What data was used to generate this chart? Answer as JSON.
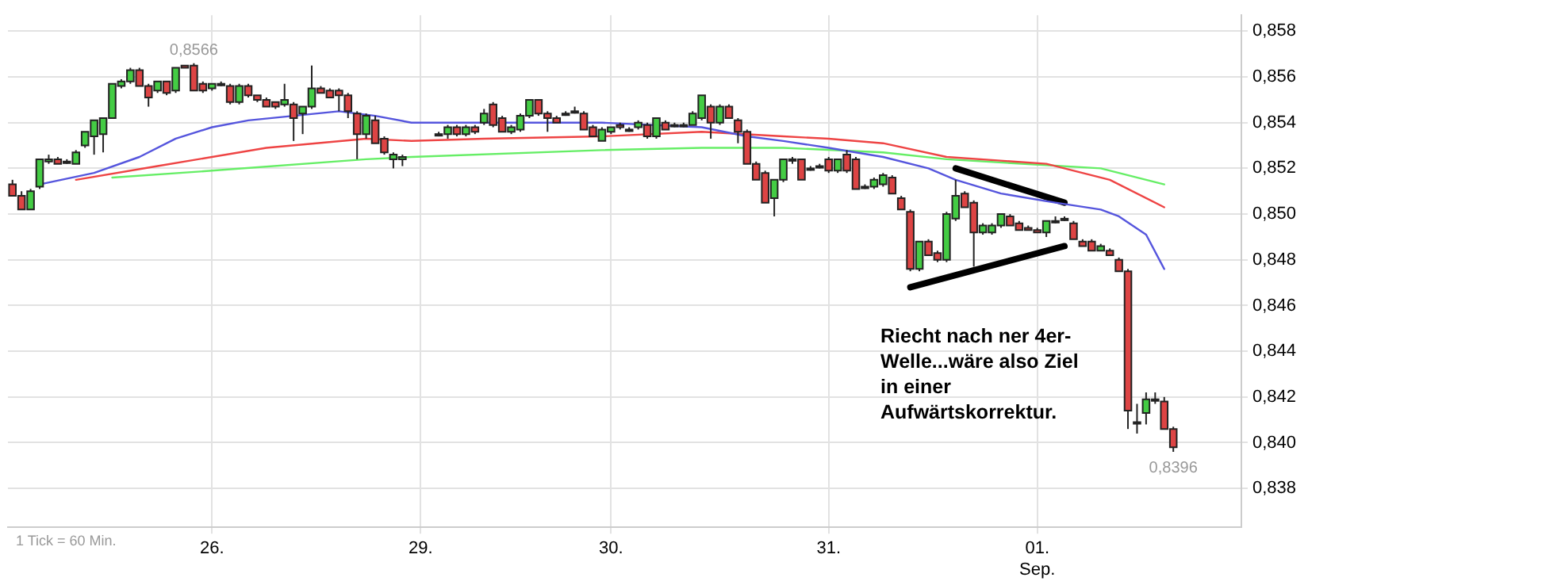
{
  "chart_data": {
    "type": "candlestick",
    "categories": [
      null,
      null,
      null,
      null,
      null,
      null,
      null,
      null,
      null,
      null,
      null,
      null,
      null,
      null,
      null,
      null,
      null,
      null,
      null,
      null,
      null,
      null,
      "26.",
      null,
      null,
      null,
      null,
      null,
      null,
      null,
      null,
      null,
      null,
      null,
      null,
      null,
      null,
      null,
      null,
      null,
      null,
      null,
      null,
      null,
      null,
      "29.",
      null,
      null,
      null,
      null,
      null,
      null,
      null,
      null,
      null,
      null,
      null,
      null,
      null,
      null,
      null,
      null,
      null,
      null,
      null,
      null,
      "30.",
      null,
      null,
      null,
      null,
      null,
      null,
      null,
      null,
      null,
      null,
      null,
      null,
      null,
      null,
      null,
      null,
      null,
      null,
      null,
      null,
      null,
      null,
      null,
      "31.",
      null,
      null,
      null,
      null,
      null,
      null,
      null,
      null,
      null,
      null,
      null,
      null,
      null,
      null,
      null,
      null,
      null,
      null,
      null,
      null,
      null,
      null,
      "01. Sep.",
      null,
      null,
      null,
      null,
      null,
      null,
      null,
      null,
      null,
      null,
      null,
      null,
      null,
      null,
      null,
      null,
      null,
      null,
      null,
      null,
      null,
      null
    ],
    "ylim": [
      0.8363,
      0.8587
    ],
    "yticks": [
      {
        "value": 0.838,
        "label": "0,838"
      },
      {
        "value": 0.84,
        "label": "0,840"
      },
      {
        "value": 0.842,
        "label": "0,842"
      },
      {
        "value": 0.844,
        "label": "0,844"
      },
      {
        "value": 0.846,
        "label": "0,846"
      },
      {
        "value": 0.848,
        "label": "0,848"
      },
      {
        "value": 0.85,
        "label": "0,850"
      },
      {
        "value": 0.852,
        "label": "0,852"
      },
      {
        "value": 0.854,
        "label": "0,854"
      },
      {
        "value": 0.856,
        "label": "0,856"
      },
      {
        "value": 0.858,
        "label": "0,858"
      }
    ],
    "grid": true,
    "annotations": [
      "Riecht nach ner 4er-Welle...wäre also Ziel in einer Aufwärtskorrektur.",
      "1 Tick = 60 Min.",
      {
        "text": "0,8566",
        "y": 0.8566
      },
      {
        "text": "0,8396",
        "y": 0.8396
      }
    ],
    "series": [
      {
        "ohlc": [
          [
            0.8513,
            0.8515,
            0.8508,
            0.8508
          ],
          [
            0.8508,
            0.851,
            0.8502,
            0.8502
          ],
          [
            0.8502,
            0.8511,
            0.8502,
            0.851
          ],
          [
            0.8512,
            0.8524,
            0.8511,
            0.8524
          ],
          [
            0.8523,
            0.8526,
            0.8522,
            0.8524
          ],
          [
            0.8524,
            0.8525,
            0.8522,
            0.8522
          ],
          [
            0.8523,
            0.8524,
            0.8522,
            0.8523
          ],
          [
            0.8522,
            0.8528,
            0.8522,
            0.8527
          ],
          [
            0.853,
            0.8536,
            0.8529,
            0.8536
          ],
          [
            0.8534,
            0.8541,
            0.8526,
            0.8541
          ],
          [
            0.8535,
            0.8542,
            0.8527,
            0.8542
          ],
          [
            0.8542,
            0.8557,
            0.8542,
            0.8557
          ],
          [
            0.8556,
            0.8559,
            0.8555,
            0.8558
          ],
          [
            0.8558,
            0.8564,
            0.8557,
            0.8563
          ],
          [
            0.8563,
            0.8564,
            0.8556,
            0.8556
          ],
          [
            0.8556,
            0.8557,
            0.8547,
            0.8551
          ],
          [
            0.8554,
            0.8558,
            0.8553,
            0.8558
          ],
          [
            0.8558,
            0.8558,
            0.8552,
            0.8553
          ],
          [
            0.8554,
            0.8564,
            0.8553,
            0.8564
          ],
          [
            0.8565,
            0.8565,
            0.8564,
            0.8564
          ],
          [
            0.8565,
            0.8566,
            0.8554,
            0.8554
          ],
          [
            0.8557,
            0.8558,
            0.8553,
            0.8554
          ],
          [
            0.8555,
            0.8557,
            0.8554,
            0.8557
          ],
          [
            0.8557,
            0.8558,
            0.8556,
            0.8557
          ],
          [
            0.8556,
            0.8557,
            0.8548,
            0.8549
          ],
          [
            0.8549,
            0.8557,
            0.8548,
            0.8556
          ],
          [
            0.8556,
            0.8557,
            0.8551,
            0.8552
          ],
          [
            0.8552,
            0.8552,
            0.8549,
            0.855
          ],
          [
            0.855,
            0.8551,
            0.8547,
            0.8547
          ],
          [
            0.8549,
            0.8549,
            0.8546,
            0.8547
          ],
          [
            0.8548,
            0.8557,
            0.8547,
            0.855
          ],
          [
            0.8548,
            0.8549,
            0.8532,
            0.8542
          ],
          [
            0.8544,
            0.8547,
            0.8535,
            0.8547
          ],
          [
            0.8547,
            0.8565,
            0.8546,
            0.8555
          ],
          [
            0.8555,
            0.8556,
            0.8553,
            0.8553
          ],
          [
            0.8554,
            0.8555,
            0.8551,
            0.8551
          ],
          [
            0.8554,
            0.8555,
            0.8545,
            0.8552
          ],
          [
            0.8552,
            0.8553,
            0.8542,
            0.8545
          ],
          [
            0.8544,
            0.8545,
            0.8524,
            0.8535
          ],
          [
            0.8535,
            0.8544,
            0.8533,
            0.8543
          ],
          [
            0.8541,
            0.8543,
            0.8531,
            0.8531
          ],
          [
            0.8533,
            0.8534,
            0.8526,
            0.8527
          ],
          [
            0.8524,
            0.8527,
            0.852,
            0.8526
          ],
          [
            0.8524,
            0.8526,
            0.8521,
            0.8525
          ],
          null,
          null,
          null,
          [
            0.8535,
            0.8536,
            0.8534,
            0.8535
          ],
          [
            0.8535,
            0.8539,
            0.8533,
            0.8538
          ],
          [
            0.8538,
            0.8539,
            0.8534,
            0.8535
          ],
          [
            0.8535,
            0.8539,
            0.8534,
            0.8538
          ],
          [
            0.8538,
            0.8539,
            0.8535,
            0.8536
          ],
          [
            0.854,
            0.8546,
            0.8539,
            0.8544
          ],
          [
            0.8548,
            0.8549,
            0.8538,
            0.8539
          ],
          [
            0.8542,
            0.8543,
            0.8536,
            0.8536
          ],
          [
            0.8536,
            0.8539,
            0.8535,
            0.8538
          ],
          [
            0.8537,
            0.8544,
            0.8536,
            0.8543
          ],
          [
            0.8543,
            0.855,
            0.8542,
            0.855
          ],
          [
            0.855,
            0.855,
            0.8543,
            0.8544
          ],
          [
            0.8544,
            0.8545,
            0.8536,
            0.8542
          ],
          [
            0.8542,
            0.8543,
            0.854,
            0.854
          ],
          [
            0.8544,
            0.8545,
            0.8543,
            0.8544
          ],
          [
            0.8545,
            0.8547,
            0.8544,
            0.8545
          ],
          [
            0.8544,
            0.8545,
            0.8537,
            0.8537
          ],
          [
            0.8538,
            0.8539,
            0.8534,
            0.8534
          ],
          [
            0.8532,
            0.8538,
            0.8532,
            0.8537
          ],
          [
            0.8536,
            0.8538,
            0.8535,
            0.8538
          ],
          [
            0.8539,
            0.854,
            0.8537,
            0.8538
          ],
          [
            0.8537,
            0.8538,
            0.8536,
            0.8537
          ],
          [
            0.8538,
            0.8541,
            0.8537,
            0.854
          ],
          [
            0.8539,
            0.854,
            0.8533,
            0.8534
          ],
          [
            0.8534,
            0.8542,
            0.8533,
            0.8542
          ],
          [
            0.854,
            0.8541,
            0.8537,
            0.8537
          ],
          [
            0.8539,
            0.854,
            0.8538,
            0.8539
          ],
          [
            0.8539,
            0.854,
            0.8538,
            0.8539
          ],
          [
            0.8539,
            0.8545,
            0.8539,
            0.8544
          ],
          [
            0.8542,
            0.8552,
            0.8541,
            0.8552
          ],
          [
            0.8547,
            0.8548,
            0.8533,
            0.854
          ],
          [
            0.854,
            0.8548,
            0.8539,
            0.8547
          ],
          [
            0.8547,
            0.8548,
            0.8542,
            0.8542
          ],
          [
            0.8541,
            0.8542,
            0.8531,
            0.8536
          ],
          [
            0.8536,
            0.8537,
            0.8522,
            0.8522
          ],
          [
            0.8522,
            0.8523,
            0.8515,
            0.8515
          ],
          [
            0.8518,
            0.8519,
            0.8505,
            0.8505
          ],
          [
            0.8507,
            0.8515,
            0.8499,
            0.8515
          ],
          [
            0.8515,
            0.8524,
            0.8514,
            0.8524
          ],
          [
            0.8524,
            0.8525,
            0.8522,
            0.8524
          ],
          [
            0.8524,
            0.8524,
            0.8515,
            0.8515
          ],
          [
            0.852,
            0.8521,
            0.8519,
            0.852
          ],
          [
            0.8521,
            0.8522,
            0.852,
            0.8521
          ],
          [
            0.8524,
            0.8525,
            0.8518,
            0.8519
          ],
          [
            0.8519,
            0.8524,
            0.8518,
            0.8524
          ],
          [
            0.8526,
            0.8528,
            0.8518,
            0.8519
          ],
          [
            0.8524,
            0.8525,
            0.8511,
            0.8511
          ],
          [
            0.8512,
            0.8513,
            0.8511,
            0.8512
          ],
          [
            0.8512,
            0.8516,
            0.8511,
            0.8515
          ],
          [
            0.8513,
            0.8518,
            0.8512,
            0.8517
          ],
          [
            0.8516,
            0.8517,
            0.8509,
            0.8509
          ],
          [
            0.8507,
            0.8508,
            0.8502,
            0.8502
          ],
          [
            0.8501,
            0.8502,
            0.8475,
            0.8476
          ],
          [
            0.8476,
            0.8488,
            0.8475,
            0.8488
          ],
          [
            0.8488,
            0.8489,
            0.8482,
            0.8482
          ],
          [
            0.8483,
            0.8484,
            0.8479,
            0.848
          ],
          [
            0.848,
            0.8501,
            0.8479,
            0.85
          ],
          [
            0.8498,
            0.8515,
            0.8497,
            0.8508
          ],
          [
            0.8509,
            0.851,
            0.8503,
            0.8503
          ],
          [
            0.8505,
            0.8506,
            0.8477,
            0.8492
          ],
          [
            0.8492,
            0.8496,
            0.8491,
            0.8495
          ],
          [
            0.8492,
            0.8496,
            0.8491,
            0.8495
          ],
          [
            0.8495,
            0.85,
            0.8494,
            0.85
          ],
          [
            0.8499,
            0.85,
            0.8495,
            0.8495
          ],
          [
            0.8496,
            0.8497,
            0.8493,
            0.8493
          ],
          [
            0.8494,
            0.8495,
            0.8493,
            0.8493
          ],
          [
            0.8493,
            0.8494,
            0.8492,
            0.8492
          ],
          [
            0.8492,
            0.8497,
            0.849,
            0.8497
          ],
          [
            0.8497,
            0.8499,
            0.8496,
            0.8497
          ],
          [
            0.8498,
            0.8499,
            0.8497,
            0.8498
          ],
          [
            0.8496,
            0.8497,
            0.8489,
            0.8489
          ],
          [
            0.8488,
            0.8489,
            0.8486,
            0.8486
          ],
          [
            0.8488,
            0.8489,
            0.8484,
            0.8484
          ],
          [
            0.8484,
            0.8487,
            0.8484,
            0.8486
          ],
          [
            0.8484,
            0.8485,
            0.8482,
            0.8482
          ],
          [
            0.848,
            0.8481,
            0.8475,
            0.8475
          ],
          [
            0.8475,
            0.8476,
            0.8406,
            0.8414
          ],
          [
            0.8409,
            0.8417,
            0.8404,
            0.8409
          ],
          [
            0.8413,
            0.8422,
            0.8408,
            0.8419
          ],
          [
            0.8419,
            0.8422,
            0.8417,
            0.8419
          ],
          [
            0.8418,
            0.842,
            0.8406,
            0.8406
          ],
          [
            0.8406,
            0.8407,
            0.8396,
            0.8398
          ],
          null,
          null,
          null,
          null,
          null,
          null,
          null
        ]
      },
      {
        "type": "line",
        "color": "#5555dd",
        "values": [
          null,
          null,
          null,
          0.8513,
          null,
          null,
          null,
          null,
          null,
          0.8518,
          null,
          null,
          null,
          null,
          0.8525,
          null,
          null,
          null,
          0.8533,
          null,
          null,
          null,
          0.8538,
          null,
          null,
          null,
          0.8541,
          null,
          null,
          null,
          null,
          0.8543,
          null,
          null,
          null,
          null,
          0.8545,
          null,
          null,
          null,
          0.8543,
          null,
          null,
          null,
          0.854,
          null,
          0.854,
          null,
          null,
          null,
          null,
          null,
          null,
          null,
          null,
          null,
          null,
          null,
          0.854,
          null,
          null,
          null,
          null,
          null,
          null,
          0.854,
          null,
          null,
          null,
          null,
          null,
          null,
          null,
          null,
          null,
          null,
          0.8538,
          null,
          null,
          null,
          null,
          0.8534,
          null,
          null,
          null,
          0.8532,
          null,
          null,
          null,
          null,
          0.8529,
          null,
          null,
          null,
          null,
          null,
          0.8525,
          null,
          null,
          null,
          null,
          0.852,
          null,
          null,
          0.8515,
          null,
          null,
          null,
          null,
          0.8509,
          null,
          null,
          null,
          null,
          null,
          0.8505,
          null,
          null,
          null,
          null,
          0.8502,
          null,
          0.8499,
          null,
          null,
          0.8491,
          null,
          0.8476,
          null,
          null,
          null,
          null,
          null,
          null,
          null,
          null
        ]
      },
      {
        "type": "line",
        "color": "#ee4444",
        "values": [
          null,
          null,
          null,
          null,
          null,
          null,
          null,
          0.8515,
          null,
          null,
          null,
          null,
          null,
          null,
          null,
          null,
          0.8521,
          null,
          null,
          null,
          null,
          null,
          null,
          null,
          null,
          null,
          null,
          null,
          0.8529,
          null,
          null,
          null,
          null,
          null,
          null,
          null,
          null,
          null,
          null,
          0.8533,
          null,
          null,
          null,
          null,
          0.8532,
          null,
          null,
          null,
          null,
          null,
          null,
          null,
          0.8533,
          null,
          null,
          null,
          null,
          null,
          null,
          null,
          null,
          null,
          null,
          null,
          null,
          0.8534,
          null,
          null,
          null,
          null,
          null,
          null,
          null,
          null,
          null,
          null,
          0.8536,
          null,
          null,
          null,
          null,
          null,
          null,
          null,
          null,
          0.8534,
          null,
          null,
          null,
          null,
          0.8533,
          null,
          null,
          null,
          null,
          null,
          0.8531,
          null,
          null,
          null,
          null,
          null,
          null,
          0.8525,
          null,
          null,
          null,
          null,
          null,
          null,
          null,
          null,
          null,
          null,
          0.8522,
          null,
          null,
          null,
          null,
          null,
          null,
          0.8515,
          null,
          null,
          null,
          null,
          null,
          0.8503,
          null,
          null,
          null,
          null,
          null,
          null,
          null,
          null
        ]
      },
      {
        "type": "line",
        "color": "#66ee66",
        "values": [
          null,
          null,
          null,
          null,
          null,
          null,
          null,
          null,
          null,
          null,
          null,
          0.8516,
          null,
          null,
          null,
          null,
          null,
          null,
          null,
          null,
          null,
          null,
          0.8519,
          null,
          null,
          null,
          null,
          null,
          null,
          null,
          null,
          null,
          null,
          null,
          null,
          null,
          null,
          null,
          null,
          0.8524,
          null,
          null,
          null,
          null,
          0.8525,
          null,
          null,
          null,
          null,
          null,
          null,
          null,
          null,
          null,
          null,
          null,
          null,
          null,
          null,
          null,
          null,
          null,
          null,
          null,
          null,
          0.8528,
          null,
          null,
          null,
          null,
          null,
          null,
          null,
          null,
          null,
          null,
          0.8529,
          null,
          null,
          null,
          null,
          null,
          null,
          null,
          null,
          0.8529,
          null,
          null,
          null,
          null,
          null,
          null,
          null,
          null,
          null,
          null,
          0.8527,
          null,
          null,
          null,
          null,
          null,
          null,
          0.8524,
          null,
          null,
          null,
          null,
          null,
          null,
          null,
          null,
          null,
          null,
          null,
          null,
          null,
          null,
          null,
          null,
          0.852,
          null,
          null,
          null,
          null,
          null,
          null,
          0.8513,
          null,
          null,
          null,
          null,
          null,
          null,
          null,
          null
        ]
      },
      {
        "type": "line",
        "color": "#000000",
        "values": [
          null,
          null,
          null,
          null,
          null,
          null,
          null,
          null,
          null,
          null,
          null,
          null,
          null,
          null,
          null,
          null,
          null,
          null,
          null,
          null,
          null,
          null,
          null,
          null,
          null,
          null,
          null,
          null,
          null,
          null,
          null,
          null,
          null,
          null,
          null,
          null,
          null,
          null,
          null,
          null,
          null,
          null,
          null,
          null,
          null,
          null,
          null,
          null,
          null,
          null,
          null,
          null,
          null,
          null,
          null,
          null,
          null,
          null,
          null,
          null,
          null,
          null,
          null,
          null,
          null,
          null,
          null,
          null,
          null,
          null,
          null,
          null,
          null,
          null,
          null,
          null,
          null,
          null,
          null,
          null,
          null,
          null,
          null,
          null,
          null,
          null,
          null,
          null,
          null,
          null,
          null,
          null,
          null,
          null,
          null,
          null,
          null,
          null,
          null,
          null,
          null,
          null,
          null,
          null,
          0.852,
          null,
          null,
          null,
          null,
          null,
          null,
          null,
          null,
          null,
          null,
          null,
          0.8505,
          null,
          null,
          null,
          null,
          null,
          null,
          null,
          null,
          null,
          null,
          null,
          null,
          null,
          null,
          null,
          null,
          null,
          null,
          null
        ]
      },
      {
        "type": "line",
        "color": "#000000",
        "values": [
          null,
          null,
          null,
          null,
          null,
          null,
          null,
          null,
          null,
          null,
          null,
          null,
          null,
          null,
          null,
          null,
          null,
          null,
          null,
          null,
          null,
          null,
          null,
          null,
          null,
          null,
          null,
          null,
          null,
          null,
          null,
          null,
          null,
          null,
          null,
          null,
          null,
          null,
          null,
          null,
          null,
          null,
          null,
          null,
          null,
          null,
          null,
          null,
          null,
          null,
          null,
          null,
          null,
          null,
          null,
          null,
          null,
          null,
          null,
          null,
          null,
          null,
          null,
          null,
          null,
          null,
          null,
          null,
          null,
          null,
          null,
          null,
          null,
          null,
          null,
          null,
          null,
          null,
          null,
          null,
          null,
          null,
          null,
          null,
          null,
          null,
          null,
          null,
          null,
          null,
          null,
          null,
          null,
          null,
          null,
          null,
          null,
          null,
          null,
          0.8468,
          null,
          null,
          null,
          null,
          null,
          null,
          null,
          null,
          null,
          null,
          null,
          null,
          null,
          null,
          null,
          null,
          0.8486,
          null,
          null,
          null,
          null,
          null,
          null,
          null,
          null,
          null,
          null,
          null,
          null,
          null,
          null,
          null,
          null,
          null,
          null,
          null
        ]
      }
    ]
  }
}
